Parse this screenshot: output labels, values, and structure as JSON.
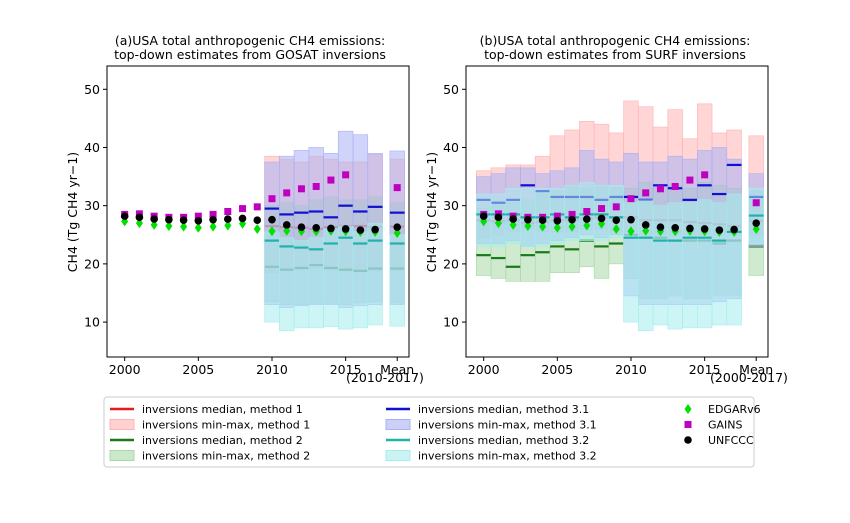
{
  "colors": {
    "m1": "#e41a1c",
    "m1_fill": "#ffb3b3",
    "m2": "#1a7a1a",
    "m2_fill": "#a8d8a8",
    "m31": "#1010d0",
    "m31_fill": "#aab0f5",
    "m32": "#20b2aa",
    "m32_fill": "#a6eded",
    "edgar": "#00e000",
    "gains": "#c000c0",
    "unfccc": "#000000"
  },
  "y_axis_label": "CH4 (Tg CH4 yr−1)",
  "legend": [
    {
      "key": "m1_med",
      "label": "inversions median, method 1",
      "kind": "line",
      "color": "#e41a1c"
    },
    {
      "key": "m1_rng",
      "label": "inversions min-max, method 1",
      "kind": "patch",
      "color": "#ffb3b3"
    },
    {
      "key": "m2_med",
      "label": "inversions median, method 2",
      "kind": "line",
      "color": "#1a7a1a"
    },
    {
      "key": "m2_rng",
      "label": "inversions min-max, method 2",
      "kind": "patch",
      "color": "#a8d8a8"
    },
    {
      "key": "m31_med",
      "label": "inversions median, method 3.1",
      "kind": "line",
      "color": "#1010d0"
    },
    {
      "key": "m31_rng",
      "label": "inversions min-max, method 3.1",
      "kind": "patch",
      "color": "#aab0f5"
    },
    {
      "key": "m32_med",
      "label": "inversions median, method 3.2",
      "kind": "line",
      "color": "#20b2aa"
    },
    {
      "key": "m32_rng",
      "label": "inversions min-max, method 3.2",
      "kind": "patch",
      "color": "#a6eded"
    },
    {
      "key": "edgar",
      "label": "EDGARv6",
      "kind": "diamond",
      "color": "#00e000"
    },
    {
      "key": "gains",
      "label": "GAINS",
      "kind": "square",
      "color": "#c000c0"
    },
    {
      "key": "unfccc",
      "label": "UNFCCC",
      "kind": "circle",
      "color": "#000000"
    }
  ],
  "chart_data": [
    {
      "id": "a",
      "type": "bar",
      "title_line1": "(a)USA total anthropogenic CH4 emissions:",
      "title_line2": "top-down estimates from GOSAT inversions",
      "ylabel": "CH4 (Tg CH4 yr−1)",
      "ylim": [
        4,
        54
      ],
      "xlim": [
        1998.8,
        2019.3
      ],
      "yticks": [
        10,
        20,
        30,
        40,
        50
      ],
      "xticks": [
        {
          "x": 2000,
          "label": "2000"
        },
        {
          "x": 2005,
          "label": "2005"
        },
        {
          "x": 2010,
          "label": "2010"
        },
        {
          "x": 2015,
          "label": "2015"
        },
        {
          "x": 2018.5,
          "label": "Mean"
        }
      ],
      "mean_label": "(2010-2017)",
      "mean_x": 2018.5,
      "inventory_years": [
        2000,
        2001,
        2002,
        2003,
        2004,
        2005,
        2006,
        2007,
        2008,
        2009,
        2010,
        2011,
        2012,
        2013,
        2014,
        2015,
        2016,
        2017
      ],
      "edgar": [
        27.3,
        27.0,
        26.7,
        26.5,
        26.4,
        26.2,
        26.4,
        26.6,
        26.9,
        26.0,
        25.6,
        25.7,
        25.6,
        25.6,
        25.7,
        25.6,
        25.5,
        25.5
      ],
      "gains": [
        28.5,
        28.6,
        28.2,
        28.0,
        28.0,
        28.2,
        28.5,
        29.0,
        29.5,
        29.8,
        31.2,
        32.2,
        32.9,
        33.3,
        34.4,
        35.3,
        null,
        null
      ],
      "unfccc": [
        28.2,
        28.0,
        27.7,
        27.6,
        27.5,
        27.4,
        27.6,
        27.7,
        27.8,
        27.5,
        27.6,
        26.7,
        26.3,
        26.2,
        26.1,
        26.0,
        25.8,
        25.9
      ],
      "mean_points": {
        "edgar": 25.3,
        "gains": 33.1,
        "unfccc": 26.3
      },
      "inversion_years": [
        2010,
        2011,
        2012,
        2013,
        2014,
        2015,
        2016,
        2017
      ],
      "series": [
        {
          "name": "inversions min-max, method 1",
          "key": "m1",
          "min": [
            18.5,
            19.0,
            19.0,
            19.2,
            19.0,
            18.8,
            18.6,
            18.8
          ],
          "max": [
            38.5,
            38.0,
            37.5,
            38.5,
            38.0,
            37.5,
            37.5,
            38.8
          ],
          "median": [
            26.5,
            26.3,
            26.2,
            26.0,
            26.3,
            26.5,
            26.5,
            26.3
          ],
          "mean": {
            "min": 18.8,
            "max": 38.0,
            "median": 26.4
          }
        },
        {
          "name": "inversions min-max, method 2",
          "key": "m2",
          "min": [
            13.5,
            13.0,
            13.0,
            13.2,
            13.2,
            13.0,
            13.3,
            13.5
          ],
          "max": [
            30.0,
            30.5,
            30.0,
            31.0,
            31.5,
            31.0,
            31.0,
            31.5
          ],
          "median": [
            19.5,
            19.0,
            19.3,
            19.8,
            19.3,
            19.0,
            18.8,
            19.2
          ],
          "mean": {
            "min": 13.3,
            "max": 30.5,
            "median": 19.2
          }
        },
        {
          "name": "inversions min-max, method 3.1",
          "key": "m31",
          "min": [
            13.0,
            12.5,
            12.8,
            13.0,
            13.0,
            12.5,
            12.8,
            13.0
          ],
          "max": [
            37.5,
            38.5,
            39.5,
            40.0,
            39.0,
            42.8,
            42.2,
            39.0
          ],
          "median": [
            29.5,
            28.5,
            28.8,
            29.0,
            28.0,
            30.0,
            29.0,
            29.8
          ],
          "mean": {
            "min": 13.0,
            "max": 39.4,
            "median": 28.8
          }
        },
        {
          "name": "inversions min-max, method 3.2",
          "key": "m32",
          "min": [
            10.0,
            8.5,
            9.0,
            9.0,
            9.2,
            8.8,
            9.0,
            9.5
          ],
          "max": [
            25.5,
            24.5,
            24.0,
            24.5,
            26.0,
            26.5,
            25.5,
            27.0
          ],
          "median": [
            24.0,
            23.0,
            22.8,
            22.5,
            23.5,
            24.5,
            23.5,
            24.0
          ],
          "mean": {
            "min": 9.3,
            "max": 25.0,
            "median": 23.5
          }
        }
      ]
    },
    {
      "id": "b",
      "type": "bar",
      "title_line1": "(b)USA total anthropogenic CH4 emissions:",
      "title_line2": "top-down estimates from SURF inversions",
      "ylabel": "CH4 (Tg CH4 yr−1)",
      "ylim": [
        4,
        54
      ],
      "xlim": [
        1998.8,
        2019.3
      ],
      "yticks": [
        10,
        20,
        30,
        40,
        50
      ],
      "xticks": [
        {
          "x": 2000,
          "label": "2000"
        },
        {
          "x": 2005,
          "label": "2005"
        },
        {
          "x": 2010,
          "label": "2010"
        },
        {
          "x": 2015,
          "label": "2015"
        },
        {
          "x": 2018.5,
          "label": "Mean"
        }
      ],
      "mean_label": "(2000-2017)",
      "mean_x": 2018.5,
      "inventory_years": [
        2000,
        2001,
        2002,
        2003,
        2004,
        2005,
        2006,
        2007,
        2008,
        2009,
        2010,
        2011,
        2012,
        2013,
        2014,
        2015,
        2016,
        2017
      ],
      "edgar": [
        27.3,
        27.0,
        26.7,
        26.5,
        26.4,
        26.2,
        26.4,
        26.6,
        26.9,
        26.0,
        25.6,
        25.7,
        25.6,
        25.6,
        25.7,
        25.6,
        25.5,
        25.5
      ],
      "gains": [
        28.5,
        28.6,
        28.2,
        28.0,
        28.0,
        28.2,
        28.5,
        29.0,
        29.5,
        29.8,
        31.2,
        32.2,
        32.9,
        33.3,
        34.4,
        35.3,
        null,
        null
      ],
      "unfccc": [
        28.2,
        28.0,
        27.7,
        27.6,
        27.5,
        27.4,
        27.6,
        27.7,
        27.8,
        27.5,
        27.6,
        26.7,
        26.3,
        26.2,
        26.1,
        26.0,
        25.8,
        25.9
      ],
      "mean_points": {
        "edgar": 26.0,
        "gains": 30.5,
        "unfccc": 27.0
      },
      "inversion_years": [
        2000,
        2001,
        2002,
        2003,
        2004,
        2005,
        2006,
        2007,
        2008,
        2009,
        2010,
        2011,
        2012,
        2013,
        2014,
        2015,
        2016,
        2017
      ],
      "series": [
        {
          "name": "inversions min-max, method 1",
          "key": "m1",
          "min": [
            24.5,
            25.0,
            25.5,
            26.0,
            25.5,
            25.5,
            25.5,
            26.0,
            26.0,
            25.5,
            25.5,
            25.0,
            25.0,
            25.0,
            25.0,
            25.0,
            25.0,
            25.0
          ],
          "max": [
            36.0,
            36.5,
            37.0,
            37.0,
            38.5,
            42.0,
            43.0,
            44.5,
            44.0,
            42.5,
            48.0,
            47.0,
            43.5,
            46.5,
            41.5,
            47.5,
            42.5,
            43.0
          ],
          "median": [
            27.5,
            27.3,
            27.5,
            27.0,
            27.2,
            27.5,
            27.5,
            27.8,
            28.0,
            28.0,
            28.0,
            27.5,
            27.5,
            27.5,
            27.2,
            27.0,
            26.8,
            26.5
          ],
          "mean": {
            "min": 25.0,
            "max": 42.0,
            "median": 27.4
          }
        },
        {
          "name": "inversions min-max, method 2",
          "key": "m2",
          "min": [
            18.0,
            17.5,
            17.0,
            17.0,
            17.0,
            18.5,
            18.5,
            19.5,
            17.5,
            20.0,
            17.5,
            14.0,
            14.0,
            14.5,
            14.0,
            14.0,
            14.5,
            14.5
          ],
          "max": [
            29.5,
            30.0,
            30.5,
            31.0,
            32.0,
            32.5,
            33.5,
            33.0,
            33.5,
            33.0,
            33.0,
            34.0,
            33.0,
            33.5,
            33.0,
            34.0,
            33.5,
            33.0
          ],
          "median": [
            21.5,
            21.0,
            19.5,
            21.5,
            22.0,
            23.0,
            22.5,
            24.0,
            23.0,
            23.5,
            25.0,
            24.5,
            24.5,
            24.0,
            24.0,
            24.0,
            23.5,
            24.0
          ],
          "mean": {
            "min": 18.0,
            "max": 32.5,
            "median": 23.0
          }
        },
        {
          "name": "inversions min-max, method 3.1",
          "key": "m31",
          "min": [
            23.5,
            23.5,
            24.0,
            23.0,
            23.5,
            24.0,
            24.5,
            25.0,
            24.5,
            25.0,
            14.5,
            13.0,
            13.0,
            13.0,
            13.0,
            13.0,
            13.5,
            14.0
          ],
          "max": [
            35.0,
            35.5,
            36.5,
            36.5,
            35.5,
            36.0,
            36.5,
            39.5,
            38.0,
            37.5,
            39.0,
            37.5,
            37.5,
            38.5,
            38.0,
            39.5,
            40.0,
            38.0
          ],
          "median": [
            31.0,
            30.5,
            31.0,
            33.5,
            32.5,
            31.5,
            31.5,
            31.5,
            31.0,
            31.5,
            31.5,
            31.0,
            33.5,
            33.0,
            31.0,
            33.5,
            32.0,
            37.0
          ],
          "mean": {
            "min": 23.0,
            "max": 35.5,
            "median": 31.5
          }
        },
        {
          "name": "inversions min-max, method 3.2",
          "key": "m32",
          "min": [
            23.0,
            23.0,
            23.5,
            23.0,
            23.0,
            23.5,
            24.0,
            24.0,
            24.0,
            24.5,
            10.0,
            8.5,
            9.5,
            8.8,
            9.0,
            9.0,
            9.5,
            9.5
          ],
          "max": [
            32.0,
            32.0,
            33.0,
            33.0,
            33.0,
            33.0,
            33.5,
            34.0,
            33.5,
            33.5,
            30.5,
            31.0,
            30.0,
            30.5,
            30.5,
            31.0,
            30.5,
            32.0
          ],
          "median": [
            28.5,
            28.5,
            28.5,
            28.0,
            28.0,
            28.5,
            28.0,
            28.5,
            28.5,
            28.0,
            24.5,
            24.5,
            24.0,
            24.0,
            24.5,
            24.5,
            24.0,
            25.5
          ],
          "mean": {
            "min": 23.5,
            "max": 33.0,
            "median": 28.3
          }
        }
      ]
    }
  ]
}
